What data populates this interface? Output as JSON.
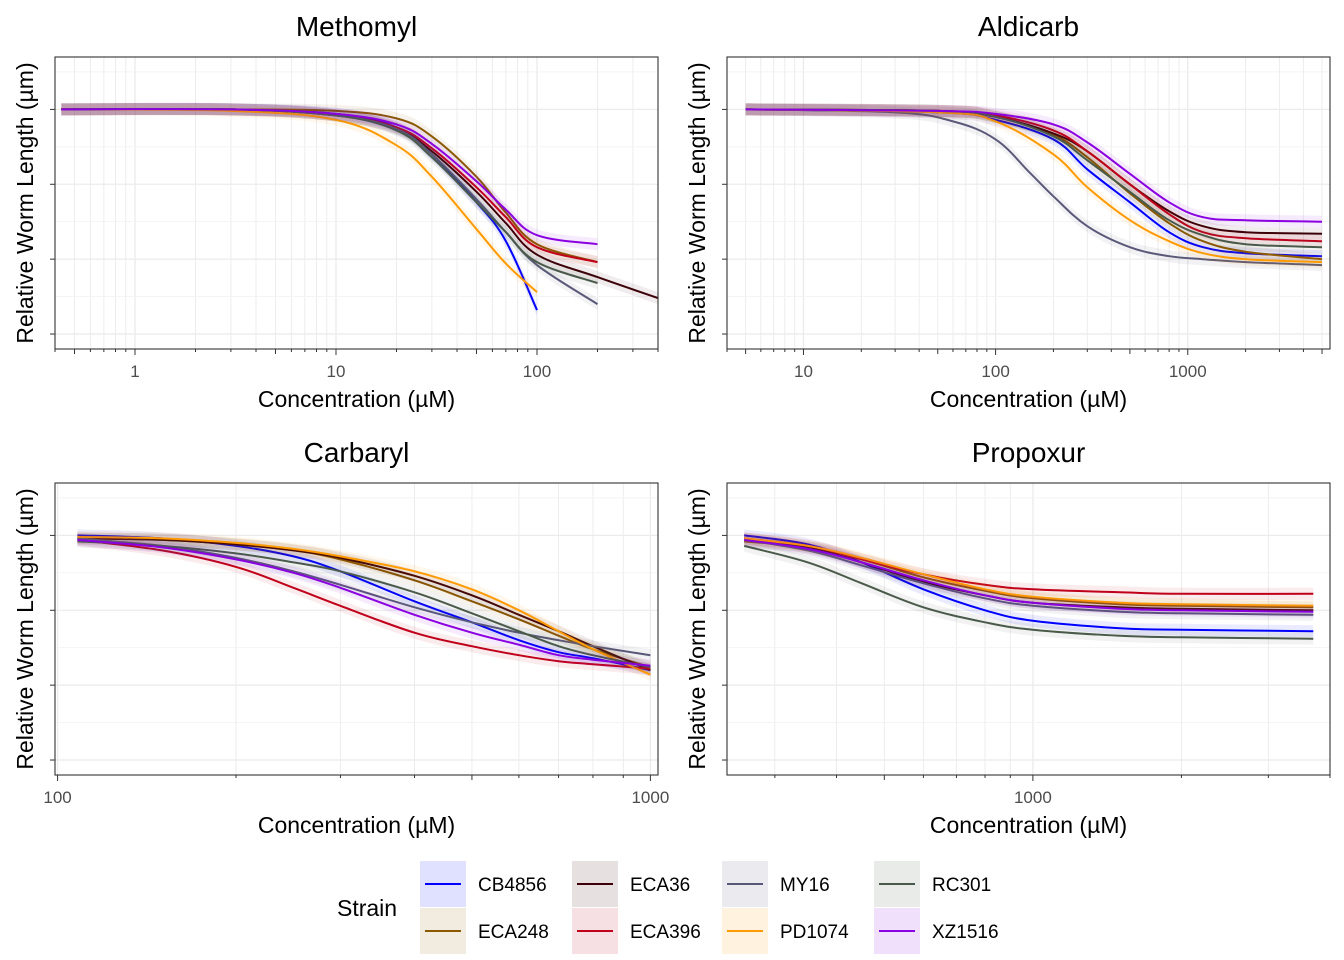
{
  "legend": {
    "title": "Strain",
    "items": [
      {
        "label": "CB4856",
        "color": "#0000ff"
      },
      {
        "label": "ECA248",
        "color": "#8b5a00"
      },
      {
        "label": "ECA36",
        "color": "#3b0008"
      },
      {
        "label": "ECA396",
        "color": "#c0001a"
      },
      {
        "label": "MY16",
        "color": "#5a5878"
      },
      {
        "label": "PD1074",
        "color": "#ff9a00"
      },
      {
        "label": "RC301",
        "color": "#4a5a4a"
      },
      {
        "label": "XZ1516",
        "color": "#8a00e0"
      }
    ]
  },
  "chart_data": [
    {
      "type": "line",
      "title": "Methomyl",
      "xlabel": "Concentration (µM)",
      "ylabel": "Relative Worm Length (µm)",
      "x_scale": "log10",
      "xlim": [
        0.4,
        400
      ],
      "x_ticks": [
        1,
        10,
        100
      ],
      "y_ticks_labeled": false,
      "grid": true,
      "series": [
        {
          "name": "CB4856",
          "x": [
            0.43,
            3,
            10,
            20,
            30,
            50,
            70,
            100
          ],
          "y": [
            1.0,
            1.0,
            0.97,
            0.88,
            0.7,
            0.38,
            0.12,
            -0.34
          ]
        },
        {
          "name": "ECA248",
          "x": [
            0.43,
            3,
            10,
            20,
            30,
            50,
            70,
            100,
            200
          ],
          "y": [
            1.0,
            1.0,
            0.99,
            0.94,
            0.82,
            0.55,
            0.31,
            0.1,
            -0.02
          ]
        },
        {
          "name": "ECA36",
          "x": [
            0.43,
            3,
            10,
            20,
            30,
            50,
            70,
            100,
            200,
            400
          ],
          "y": [
            1.0,
            1.0,
            0.96,
            0.87,
            0.72,
            0.45,
            0.24,
            0.03,
            -0.12,
            -0.26
          ]
        },
        {
          "name": "ECA396",
          "x": [
            0.43,
            3,
            10,
            20,
            30,
            50,
            70,
            100,
            200
          ],
          "y": [
            1.0,
            1.0,
            0.96,
            0.88,
            0.74,
            0.48,
            0.28,
            0.08,
            -0.02
          ]
        },
        {
          "name": "MY16",
          "x": [
            0.43,
            3,
            10,
            20,
            30,
            50,
            70,
            100,
            200
          ],
          "y": [
            1.0,
            1.0,
            0.96,
            0.87,
            0.7,
            0.4,
            0.18,
            -0.04,
            -0.3
          ]
        },
        {
          "name": "PD1074",
          "x": [
            0.43,
            3,
            10,
            20,
            30,
            50,
            70,
            100
          ],
          "y": [
            1.0,
            0.99,
            0.93,
            0.76,
            0.55,
            0.2,
            -0.03,
            -0.22
          ]
        },
        {
          "name": "RC301",
          "x": [
            0.43,
            3,
            10,
            20,
            30,
            50,
            70,
            100,
            200
          ],
          "y": [
            1.0,
            1.0,
            0.96,
            0.86,
            0.68,
            0.38,
            0.18,
            -0.02,
            -0.16
          ]
        },
        {
          "name": "XZ1516",
          "x": [
            0.43,
            3,
            10,
            20,
            30,
            50,
            70,
            100,
            200
          ],
          "y": [
            1.0,
            1.0,
            0.97,
            0.9,
            0.77,
            0.52,
            0.33,
            0.16,
            0.1
          ]
        }
      ]
    },
    {
      "type": "line",
      "title": "Aldicarb",
      "xlabel": "Concentration (µM)",
      "ylabel": "Relative Worm Length (µm)",
      "x_scale": "log10",
      "xlim": [
        4,
        5500
      ],
      "x_ticks": [
        10,
        100,
        1000
      ],
      "y_ticks_labeled": false,
      "grid": true,
      "series": [
        {
          "name": "CB4856",
          "x": [
            5,
            50,
            100,
            200,
            300,
            500,
            800,
            1200,
            2000,
            5000
          ],
          "y": [
            1.0,
            0.98,
            0.93,
            0.8,
            0.6,
            0.38,
            0.18,
            0.08,
            0.04,
            0.02
          ]
        },
        {
          "name": "ECA248",
          "x": [
            5,
            50,
            100,
            200,
            300,
            500,
            800,
            1200,
            2000,
            5000
          ],
          "y": [
            1.0,
            0.99,
            0.95,
            0.83,
            0.68,
            0.44,
            0.24,
            0.12,
            0.05,
            0.0
          ]
        },
        {
          "name": "ECA36",
          "x": [
            5,
            50,
            100,
            200,
            300,
            500,
            800,
            1200,
            2000,
            5000
          ],
          "y": [
            1.0,
            0.99,
            0.95,
            0.84,
            0.72,
            0.5,
            0.32,
            0.22,
            0.18,
            0.17
          ]
        },
        {
          "name": "ECA396",
          "x": [
            5,
            50,
            100,
            200,
            300,
            500,
            800,
            1200,
            2000,
            5000
          ],
          "y": [
            1.0,
            0.99,
            0.96,
            0.86,
            0.72,
            0.5,
            0.3,
            0.18,
            0.14,
            0.12
          ]
        },
        {
          "name": "MY16",
          "x": [
            5,
            30,
            60,
            100,
            150,
            200,
            300,
            500,
            800,
            1200,
            2000,
            5000
          ],
          "y": [
            1.0,
            0.98,
            0.92,
            0.8,
            0.58,
            0.42,
            0.22,
            0.08,
            0.02,
            0.0,
            -0.02,
            -0.04
          ]
        },
        {
          "name": "PD1074",
          "x": [
            5,
            50,
            100,
            200,
            300,
            500,
            800,
            1200,
            2000,
            5000
          ],
          "y": [
            1.0,
            0.98,
            0.92,
            0.7,
            0.48,
            0.26,
            0.12,
            0.04,
            0.0,
            -0.02
          ]
        },
        {
          "name": "RC301",
          "x": [
            5,
            50,
            100,
            200,
            300,
            500,
            800,
            1200,
            2000,
            5000
          ],
          "y": [
            1.0,
            0.99,
            0.95,
            0.82,
            0.66,
            0.45,
            0.26,
            0.16,
            0.1,
            0.08
          ]
        },
        {
          "name": "XZ1516",
          "x": [
            5,
            50,
            100,
            200,
            300,
            500,
            800,
            1200,
            2000,
            5000
          ],
          "y": [
            1.0,
            0.99,
            0.97,
            0.9,
            0.78,
            0.57,
            0.38,
            0.28,
            0.26,
            0.25
          ]
        }
      ]
    },
    {
      "type": "line",
      "title": "Carbaryl",
      "xlabel": "Concentration (µM)",
      "ylabel": "Relative Worm Length (µm)",
      "x_scale": "log10",
      "xlim": [
        99,
        1030
      ],
      "x_ticks": [
        100,
        1000
      ],
      "y_ticks_labeled": false,
      "grid": true,
      "series": [
        {
          "name": "CB4856",
          "x": [
            108,
            150,
            200,
            250,
            300,
            400,
            500,
            600,
            700,
            800,
            1000
          ],
          "y": [
            1.0,
            0.98,
            0.93,
            0.86,
            0.76,
            0.56,
            0.42,
            0.3,
            0.22,
            0.18,
            0.1
          ]
        },
        {
          "name": "ECA248",
          "x": [
            108,
            150,
            200,
            250,
            300,
            400,
            500,
            600,
            700,
            800,
            1000
          ],
          "y": [
            0.98,
            0.97,
            0.94,
            0.9,
            0.84,
            0.7,
            0.56,
            0.44,
            0.33,
            0.24,
            0.12
          ]
        },
        {
          "name": "ECA36",
          "x": [
            108,
            150,
            200,
            250,
            300,
            400,
            500,
            600,
            700,
            800,
            1000
          ],
          "y": [
            0.98,
            0.97,
            0.94,
            0.9,
            0.85,
            0.73,
            0.6,
            0.47,
            0.36,
            0.26,
            0.1
          ]
        },
        {
          "name": "ECA396",
          "x": [
            108,
            150,
            200,
            250,
            300,
            400,
            500,
            600,
            700,
            800,
            1000
          ],
          "y": [
            0.97,
            0.9,
            0.79,
            0.65,
            0.53,
            0.35,
            0.26,
            0.2,
            0.16,
            0.14,
            0.11
          ]
        },
        {
          "name": "MY16",
          "x": [
            108,
            150,
            200,
            250,
            300,
            400,
            500,
            600,
            700,
            800,
            1000
          ],
          "y": [
            0.98,
            0.93,
            0.85,
            0.76,
            0.67,
            0.52,
            0.42,
            0.35,
            0.3,
            0.26,
            0.2
          ]
        },
        {
          "name": "PD1074",
          "x": [
            108,
            150,
            200,
            250,
            300,
            400,
            500,
            600,
            700,
            800,
            1000
          ],
          "y": [
            0.99,
            0.98,
            0.95,
            0.91,
            0.86,
            0.76,
            0.64,
            0.5,
            0.36,
            0.24,
            0.07
          ]
        },
        {
          "name": "RC301",
          "x": [
            108,
            150,
            200,
            250,
            300,
            400,
            500,
            600,
            700,
            800,
            1000
          ],
          "y": [
            0.96,
            0.93,
            0.88,
            0.82,
            0.76,
            0.62,
            0.48,
            0.36,
            0.26,
            0.2,
            0.12
          ]
        },
        {
          "name": "XZ1516",
          "x": [
            108,
            150,
            200,
            250,
            300,
            400,
            500,
            600,
            700,
            800,
            1000
          ],
          "y": [
            0.97,
            0.92,
            0.84,
            0.75,
            0.65,
            0.47,
            0.35,
            0.27,
            0.2,
            0.17,
            0.13
          ]
        }
      ]
    },
    {
      "type": "line",
      "title": "Propoxur",
      "xlabel": "Concentration (µM)",
      "ylabel": "Relative Worm Length (µm)",
      "x_scale": "log10",
      "xlim": [
        240,
        4000
      ],
      "x_ticks": [
        1000
      ],
      "y_ticks_labeled": false,
      "grid": true,
      "series": [
        {
          "name": "CB4856",
          "x": [
            260,
            350,
            450,
            600,
            800,
            1000,
            1500,
            2000,
            3700
          ],
          "y": [
            1.0,
            0.94,
            0.82,
            0.64,
            0.5,
            0.43,
            0.38,
            0.37,
            0.36
          ]
        },
        {
          "name": "ECA248",
          "x": [
            260,
            350,
            450,
            600,
            800,
            1000,
            1500,
            2000,
            3700
          ],
          "y": [
            0.96,
            0.92,
            0.84,
            0.72,
            0.63,
            0.58,
            0.54,
            0.53,
            0.52
          ]
        },
        {
          "name": "ECA36",
          "x": [
            260,
            350,
            450,
            600,
            800,
            1000,
            1500,
            2000,
            3700
          ],
          "y": [
            0.98,
            0.92,
            0.82,
            0.69,
            0.6,
            0.55,
            0.52,
            0.51,
            0.5
          ]
        },
        {
          "name": "ECA396",
          "x": [
            260,
            350,
            450,
            600,
            800,
            1000,
            1500,
            2000,
            3700
          ],
          "y": [
            0.98,
            0.93,
            0.84,
            0.74,
            0.67,
            0.64,
            0.62,
            0.61,
            0.61
          ]
        },
        {
          "name": "MY16",
          "x": [
            260,
            350,
            450,
            600,
            800,
            1000,
            1500,
            2000,
            3700
          ],
          "y": [
            0.97,
            0.9,
            0.8,
            0.68,
            0.58,
            0.53,
            0.49,
            0.48,
            0.47
          ]
        },
        {
          "name": "PD1074",
          "x": [
            260,
            350,
            450,
            600,
            800,
            1000,
            1500,
            2000,
            3700
          ],
          "y": [
            0.98,
            0.93,
            0.85,
            0.74,
            0.64,
            0.59,
            0.55,
            0.54,
            0.53
          ]
        },
        {
          "name": "RC301",
          "x": [
            260,
            350,
            450,
            600,
            800,
            1000,
            1500,
            2000,
            3700
          ],
          "y": [
            0.93,
            0.82,
            0.68,
            0.52,
            0.42,
            0.37,
            0.33,
            0.32,
            0.31
          ]
        },
        {
          "name": "XZ1516",
          "x": [
            260,
            350,
            450,
            600,
            800,
            1000,
            1500,
            2000,
            3700
          ],
          "y": [
            0.97,
            0.91,
            0.82,
            0.7,
            0.6,
            0.55,
            0.51,
            0.5,
            0.49
          ]
        }
      ]
    }
  ]
}
